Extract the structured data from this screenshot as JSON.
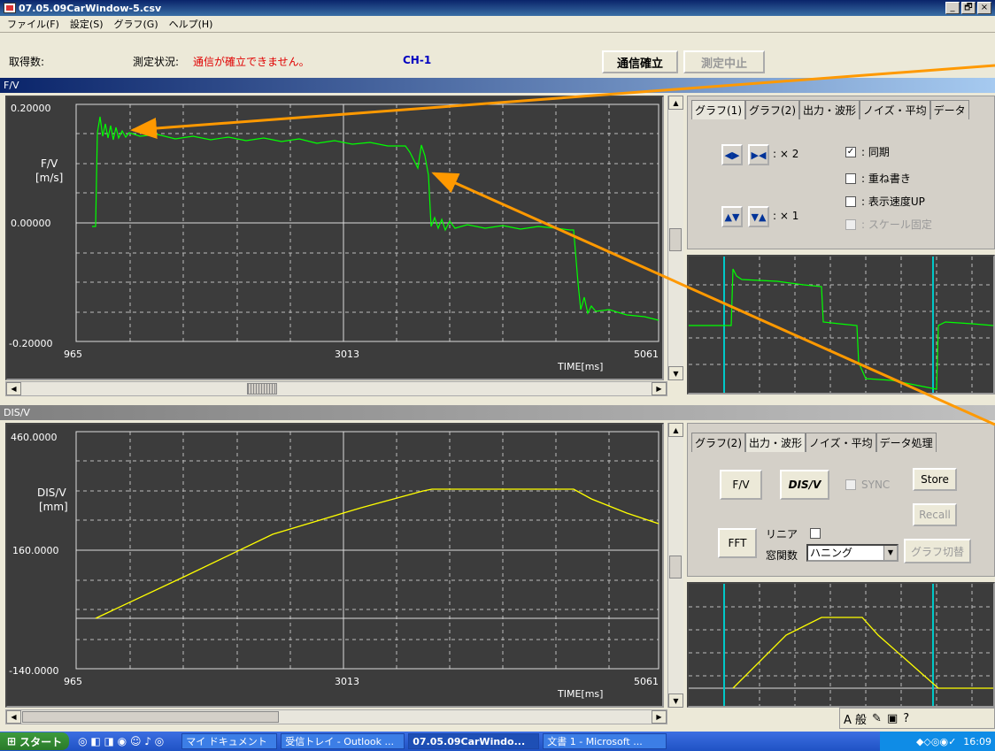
{
  "window": {
    "title": "07.05.09CarWindow-5.csv",
    "controls": [
      "_",
      "🗗",
      "×"
    ]
  },
  "menu": [
    "ファイル(F)",
    "設定(S)",
    "グラフ(G)",
    "ヘルプ(H)"
  ],
  "status": {
    "acquired_label": "取得数:",
    "state_label": "測定状況:",
    "state_value": "通信が確立できません。",
    "channel": "CH-1",
    "connect_button": "通信確立",
    "stop_button": "測定中止"
  },
  "fv": {
    "header": "F/V",
    "ylabel": "F/V",
    "yunit": "[m/s]",
    "ytop": "0.20000",
    "ymid": "0.00000",
    "ybot": "-0.20000",
    "x_ticks": [
      "965",
      "3013",
      "5061"
    ],
    "xlabel": "TIME[ms]"
  },
  "dis": {
    "header": "DIS/V",
    "ylabel": "DIS/V",
    "yunit": "[mm]",
    "ytop": "460.0000",
    "ymid": "160.0000",
    "ybot": "-140.0000",
    "x_ticks": [
      "965",
      "3013",
      "5061"
    ],
    "xlabel": "TIME[ms]"
  },
  "ctrl1": {
    "tabs": [
      "グラフ(1)",
      "グラフ(2)",
      "出力・波形",
      "ノイズ・平均",
      "データ"
    ],
    "zoom_x": ": × 2",
    "zoom_y": ": × 1",
    "checks": [
      {
        "label": ": 同期",
        "checked": true,
        "enabled": true
      },
      {
        "label": ": 重ね書き",
        "checked": false,
        "enabled": true
      },
      {
        "label": ": 表示速度UP",
        "checked": false,
        "enabled": true
      },
      {
        "label": ": スケール固定",
        "checked": false,
        "enabled": false
      }
    ]
  },
  "ctrl2": {
    "tabs": [
      "グラフ(2)",
      "出力・波形",
      "ノイズ・平均",
      "データ処理"
    ],
    "fv_button": "F/V",
    "dis_button": "DIS/V",
    "sync_label": "SYNC",
    "store_button": "Store",
    "recall_button": "Recall",
    "fft_button": "FFT",
    "linear_label": "リニア",
    "window_label": "窓関数",
    "window_value": "ハニング",
    "switch_button": "グラフ切替"
  },
  "taskbar": {
    "start": "スタート",
    "tasks": [
      "マイ ドキュメント",
      "受信トレイ - Outlook ...",
      "07.05.09CarWindo...",
      "文書 1 - Microsoft ..."
    ],
    "time": "16:09"
  },
  "ime": {
    "text": "A 般"
  },
  "colors": {
    "fv_trace": "#00ff00",
    "dis_trace": "#ffff00",
    "annotation_arrow": "#ff9900",
    "cursor": "#00c8c8"
  }
}
